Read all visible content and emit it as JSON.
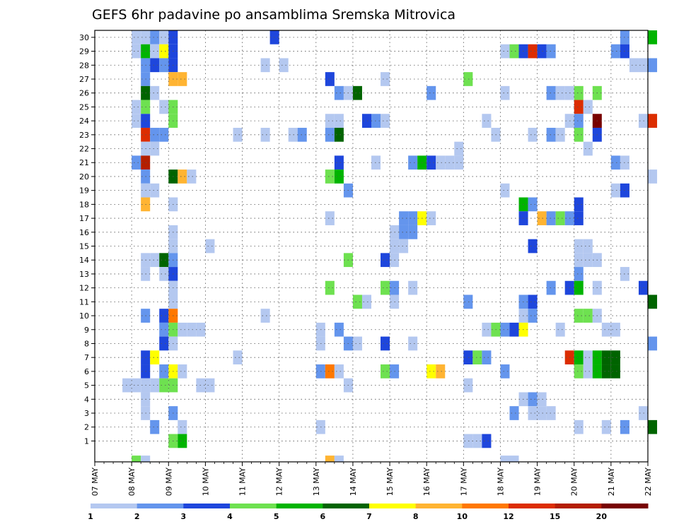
{
  "chart_data": {
    "type": "heatmap",
    "title": "GEFS 6hr padavine po ansamblima Sremska Mitrovica",
    "y_categories": [
      "1",
      "2",
      "3",
      "4",
      "5",
      "6",
      "7",
      "8",
      "9",
      "10",
      "11",
      "12",
      "13",
      "14",
      "15",
      "16",
      "17",
      "18",
      "19",
      "20",
      "21",
      "22",
      "23",
      "24",
      "25",
      "26",
      "27",
      "28",
      "29",
      "30"
    ],
    "x_tick_labels": [
      "07 MAY",
      "08 MAY",
      "09 MAY",
      "10 MAY",
      "11 MAY",
      "12 MAY",
      "13 MAY",
      "14 MAY",
      "15 MAY",
      "16 MAY",
      "17 MAY",
      "18 MAY",
      "19 MAY",
      "20 MAY",
      "21 MAY",
      "22 MAY"
    ],
    "x_steps_per_day": 4,
    "grid": true,
    "legend": {
      "placement": "bottom",
      "labels": [
        "1",
        "2",
        "3",
        "4",
        "5",
        "6",
        "7",
        "8",
        "10",
        "12",
        "15",
        "20"
      ],
      "colors": [
        "#b4c8f0",
        "#6495ed",
        "#1e46dc",
        "#6ee150",
        "#00b400",
        "#006400",
        "#ffff00",
        "#ffb432",
        "#ff7800",
        "#dc2d00",
        "#b41e00",
        "#780000"
      ]
    },
    "colors": [
      "#b4c8f0",
      "#6495ed",
      "#1e46dc",
      "#6ee150",
      "#00b400",
      "#006400",
      "#ffff00",
      "#ffb432",
      "#ff7800",
      "#dc2d00",
      "#b41e00",
      "#780000"
    ],
    "cell_format": "[time_step_from_07_MAY_00z, member, color_class_index]",
    "cells": [
      [
        4,
        30,
        0
      ],
      [
        5,
        30,
        0
      ],
      [
        6,
        30,
        1
      ],
      [
        7,
        30,
        0
      ],
      [
        8,
        30,
        2
      ],
      [
        19,
        30,
        2
      ],
      [
        57,
        30,
        1
      ],
      [
        60,
        30,
        4
      ],
      [
        4,
        29,
        0
      ],
      [
        5,
        29,
        4
      ],
      [
        6,
        29,
        0
      ],
      [
        7,
        29,
        6
      ],
      [
        8,
        29,
        2
      ],
      [
        44,
        29,
        0
      ],
      [
        45,
        29,
        3
      ],
      [
        46,
        29,
        2
      ],
      [
        47,
        29,
        9
      ],
      [
        48,
        29,
        2
      ],
      [
        49,
        29,
        1
      ],
      [
        56,
        29,
        1
      ],
      [
        57,
        29,
        2
      ],
      [
        5,
        28,
        1
      ],
      [
        6,
        28,
        2
      ],
      [
        7,
        28,
        1
      ],
      [
        8,
        28,
        2
      ],
      [
        18,
        28,
        0
      ],
      [
        20,
        28,
        0
      ],
      [
        58,
        28,
        0
      ],
      [
        60,
        28,
        1
      ],
      [
        59,
        28,
        0
      ],
      [
        5,
        27,
        1
      ],
      [
        8,
        27,
        7
      ],
      [
        9,
        27,
        7
      ],
      [
        25,
        27,
        2
      ],
      [
        31,
        27,
        0
      ],
      [
        40,
        27,
        3
      ],
      [
        5,
        26,
        5
      ],
      [
        6,
        26,
        0
      ],
      [
        26,
        26,
        1
      ],
      [
        27,
        26,
        0
      ],
      [
        28,
        26,
        5
      ],
      [
        36,
        26,
        1
      ],
      [
        44,
        26,
        0
      ],
      [
        49,
        26,
        1
      ],
      [
        50,
        26,
        0
      ],
      [
        51,
        26,
        0
      ],
      [
        52,
        26,
        3
      ],
      [
        54,
        26,
        3
      ],
      [
        4,
        25,
        0
      ],
      [
        5,
        25,
        3
      ],
      [
        7,
        25,
        0
      ],
      [
        8,
        25,
        3
      ],
      [
        52,
        25,
        9
      ],
      [
        53,
        25,
        0
      ],
      [
        4,
        24,
        0
      ],
      [
        5,
        24,
        2
      ],
      [
        8,
        24,
        3
      ],
      [
        25,
        24,
        0
      ],
      [
        26,
        24,
        0
      ],
      [
        29,
        24,
        2
      ],
      [
        30,
        24,
        1
      ],
      [
        31,
        24,
        0
      ],
      [
        42,
        24,
        0
      ],
      [
        51,
        24,
        0
      ],
      [
        52,
        24,
        1
      ],
      [
        54,
        24,
        11
      ],
      [
        59,
        24,
        0
      ],
      [
        60,
        24,
        9
      ],
      [
        5,
        23,
        9
      ],
      [
        6,
        23,
        1
      ],
      [
        7,
        23,
        1
      ],
      [
        15,
        23,
        0
      ],
      [
        18,
        23,
        0
      ],
      [
        21,
        23,
        0
      ],
      [
        22,
        23,
        1
      ],
      [
        25,
        23,
        1
      ],
      [
        26,
        23,
        5
      ],
      [
        43,
        23,
        0
      ],
      [
        47,
        23,
        0
      ],
      [
        49,
        23,
        1
      ],
      [
        50,
        23,
        0
      ],
      [
        52,
        23,
        3
      ],
      [
        54,
        23,
        2
      ],
      [
        5,
        22,
        0
      ],
      [
        6,
        22,
        0
      ],
      [
        39,
        22,
        0
      ],
      [
        53,
        22,
        0
      ],
      [
        4,
        21,
        1
      ],
      [
        5,
        21,
        10
      ],
      [
        26,
        21,
        2
      ],
      [
        30,
        21,
        0
      ],
      [
        34,
        21,
        1
      ],
      [
        35,
        21,
        4
      ],
      [
        36,
        21,
        2
      ],
      [
        37,
        21,
        0
      ],
      [
        38,
        21,
        0
      ],
      [
        39,
        21,
        0
      ],
      [
        56,
        21,
        1
      ],
      [
        57,
        21,
        0
      ],
      [
        5,
        20,
        1
      ],
      [
        8,
        20,
        5
      ],
      [
        9,
        20,
        7
      ],
      [
        10,
        20,
        0
      ],
      [
        25,
        20,
        3
      ],
      [
        26,
        20,
        4
      ],
      [
        60,
        20,
        0
      ],
      [
        5,
        19,
        0
      ],
      [
        6,
        19,
        0
      ],
      [
        27,
        19,
        1
      ],
      [
        44,
        19,
        0
      ],
      [
        56,
        19,
        0
      ],
      [
        57,
        19,
        2
      ],
      [
        5,
        18,
        7
      ],
      [
        8,
        18,
        0
      ],
      [
        46,
        18,
        4
      ],
      [
        47,
        18,
        1
      ],
      [
        52,
        18,
        2
      ],
      [
        25,
        17,
        0
      ],
      [
        33,
        17,
        1
      ],
      [
        34,
        17,
        1
      ],
      [
        35,
        17,
        6
      ],
      [
        36,
        17,
        0
      ],
      [
        46,
        17,
        2
      ],
      [
        48,
        17,
        7
      ],
      [
        49,
        17,
        1
      ],
      [
        50,
        17,
        3
      ],
      [
        51,
        17,
        1
      ],
      [
        52,
        17,
        2
      ],
      [
        8,
        16,
        0
      ],
      [
        32,
        16,
        0
      ],
      [
        33,
        16,
        1
      ],
      [
        34,
        16,
        1
      ],
      [
        8,
        15,
        0
      ],
      [
        12,
        15,
        0
      ],
      [
        32,
        15,
        0
      ],
      [
        33,
        15,
        0
      ],
      [
        47,
        15,
        2
      ],
      [
        52,
        15,
        0
      ],
      [
        53,
        15,
        0
      ],
      [
        5,
        14,
        0
      ],
      [
        6,
        14,
        0
      ],
      [
        7,
        14,
        5
      ],
      [
        8,
        14,
        1
      ],
      [
        27,
        14,
        3
      ],
      [
        31,
        14,
        2
      ],
      [
        32,
        14,
        0
      ],
      [
        52,
        14,
        0
      ],
      [
        53,
        14,
        0
      ],
      [
        54,
        14,
        0
      ],
      [
        5,
        13,
        0
      ],
      [
        7,
        13,
        0
      ],
      [
        8,
        13,
        2
      ],
      [
        52,
        13,
        1
      ],
      [
        57,
        13,
        0
      ],
      [
        8,
        12,
        0
      ],
      [
        25,
        12,
        3
      ],
      [
        31,
        12,
        3
      ],
      [
        32,
        12,
        1
      ],
      [
        34,
        12,
        0
      ],
      [
        49,
        12,
        1
      ],
      [
        51,
        12,
        2
      ],
      [
        52,
        12,
        4
      ],
      [
        54,
        12,
        0
      ],
      [
        59,
        12,
        2
      ],
      [
        8,
        11,
        0
      ],
      [
        28,
        11,
        3
      ],
      [
        29,
        11,
        0
      ],
      [
        32,
        11,
        0
      ],
      [
        40,
        11,
        1
      ],
      [
        46,
        11,
        1
      ],
      [
        47,
        11,
        2
      ],
      [
        60,
        11,
        5
      ],
      [
        5,
        10,
        1
      ],
      [
        7,
        10,
        2
      ],
      [
        8,
        10,
        8
      ],
      [
        18,
        10,
        0
      ],
      [
        46,
        10,
        0
      ],
      [
        47,
        10,
        1
      ],
      [
        52,
        10,
        3
      ],
      [
        53,
        10,
        3
      ],
      [
        54,
        10,
        0
      ],
      [
        7,
        9,
        1
      ],
      [
        8,
        9,
        3
      ],
      [
        9,
        9,
        0
      ],
      [
        10,
        9,
        0
      ],
      [
        11,
        9,
        0
      ],
      [
        24,
        9,
        0
      ],
      [
        26,
        9,
        1
      ],
      [
        42,
        9,
        0
      ],
      [
        43,
        9,
        3
      ],
      [
        44,
        9,
        1
      ],
      [
        45,
        9,
        2
      ],
      [
        46,
        9,
        6
      ],
      [
        50,
        9,
        0
      ],
      [
        55,
        9,
        0
      ],
      [
        56,
        9,
        0
      ],
      [
        7,
        8,
        2
      ],
      [
        8,
        8,
        0
      ],
      [
        24,
        8,
        0
      ],
      [
        27,
        8,
        1
      ],
      [
        28,
        8,
        0
      ],
      [
        31,
        8,
        2
      ],
      [
        34,
        8,
        0
      ],
      [
        60,
        8,
        1
      ],
      [
        5,
        7,
        2
      ],
      [
        6,
        7,
        6
      ],
      [
        15,
        7,
        0
      ],
      [
        40,
        7,
        2
      ],
      [
        41,
        7,
        3
      ],
      [
        42,
        7,
        1
      ],
      [
        51,
        7,
        9
      ],
      [
        52,
        7,
        4
      ],
      [
        53,
        7,
        0
      ],
      [
        54,
        7,
        4
      ],
      [
        55,
        7,
        5
      ],
      [
        56,
        7,
        5
      ],
      [
        5,
        6,
        2
      ],
      [
        7,
        6,
        1
      ],
      [
        8,
        6,
        6
      ],
      [
        9,
        6,
        0
      ],
      [
        24,
        6,
        1
      ],
      [
        25,
        6,
        8
      ],
      [
        26,
        6,
        0
      ],
      [
        31,
        6,
        3
      ],
      [
        32,
        6,
        1
      ],
      [
        36,
        6,
        6
      ],
      [
        37,
        6,
        7
      ],
      [
        44,
        6,
        1
      ],
      [
        52,
        6,
        3
      ],
      [
        53,
        6,
        0
      ],
      [
        54,
        6,
        4
      ],
      [
        55,
        6,
        5
      ],
      [
        56,
        6,
        5
      ],
      [
        3,
        5,
        0
      ],
      [
        4,
        5,
        0
      ],
      [
        5,
        5,
        0
      ],
      [
        6,
        5,
        0
      ],
      [
        7,
        5,
        3
      ],
      [
        8,
        5,
        3
      ],
      [
        11,
        5,
        0
      ],
      [
        12,
        5,
        0
      ],
      [
        27,
        5,
        0
      ],
      [
        40,
        5,
        0
      ],
      [
        5,
        4,
        0
      ],
      [
        46,
        4,
        0
      ],
      [
        47,
        4,
        1
      ],
      [
        48,
        4,
        0
      ],
      [
        5,
        3,
        0
      ],
      [
        8,
        3,
        1
      ],
      [
        45,
        3,
        1
      ],
      [
        47,
        3,
        0
      ],
      [
        48,
        3,
        0
      ],
      [
        49,
        3,
        0
      ],
      [
        59,
        3,
        0
      ],
      [
        6,
        2,
        1
      ],
      [
        9,
        2,
        0
      ],
      [
        24,
        2,
        0
      ],
      [
        52,
        2,
        0
      ],
      [
        55,
        2,
        0
      ],
      [
        57,
        2,
        1
      ],
      [
        60,
        2,
        5
      ],
      [
        8,
        1,
        3
      ],
      [
        9,
        1,
        4
      ],
      [
        40,
        1,
        0
      ],
      [
        41,
        1,
        0
      ],
      [
        42,
        1,
        2
      ],
      [
        4,
        0,
        3
      ],
      [
        5,
        0,
        0
      ],
      [
        25,
        0,
        7
      ],
      [
        26,
        0,
        0
      ],
      [
        44,
        0,
        0
      ],
      [
        45,
        0,
        0
      ]
    ]
  }
}
